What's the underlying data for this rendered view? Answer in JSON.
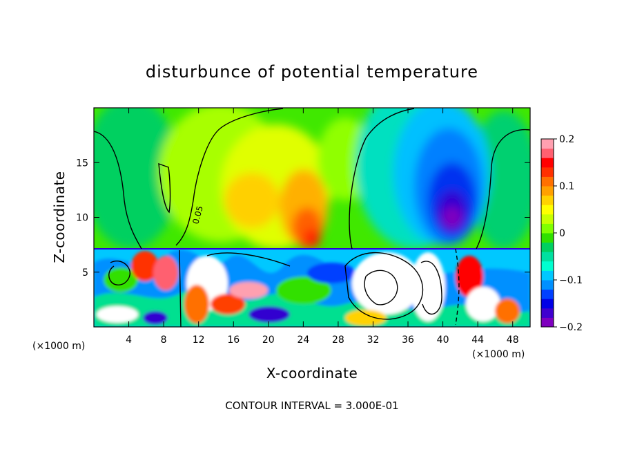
{
  "chart_data": {
    "type": "heatmap",
    "title": "disturbunce of potential temperature",
    "xlabel": "X-coordinate",
    "ylabel": "Z-coordinate",
    "x_unit": "(×1000 m)",
    "x_unit_right": "(×1000 m)",
    "xlim": [
      0,
      50
    ],
    "ylim": [
      0,
      20
    ],
    "x_ticks": [
      "4",
      "8",
      "12",
      "16",
      "20",
      "24",
      "28",
      "32",
      "36",
      "40",
      "44",
      "48"
    ],
    "y_ticks": [
      "5",
      "10",
      "15"
    ],
    "colorbar": {
      "range": [
        -0.2,
        0.2
      ],
      "tick_labels": [
        "0.2",
        "0.1",
        "0",
        "−0.1",
        "−0.2"
      ],
      "colors": [
        "#7f00bf",
        "#3f00cf",
        "#0000e6",
        "#0040ff",
        "#0090ff",
        "#00c8ff",
        "#00ffd0",
        "#00e0a0",
        "#00d060",
        "#30e000",
        "#80ff00",
        "#c8ff00",
        "#ffff00",
        "#ffd200",
        "#ffa000",
        "#ff7000",
        "#ff3000",
        "#ff0000",
        "#ff6070",
        "#ffa0b0"
      ]
    },
    "contour_labels": [
      "0.05"
    ],
    "note": "CONTOUR INTERVAL = 3.000E-01"
  },
  "text": {
    "title": "disturbunce of potential temperature",
    "xlabel": "X-coordinate",
    "ylabel": "Z-coordinate",
    "x_unit_left": "(×1000 m)",
    "x_unit_right": "(×1000 m)",
    "contour_interval": "CONTOUR INTERVAL = 3.000E-01",
    "contour_label": "0.05"
  },
  "colors": {
    "background": "#ffffff",
    "axis": "#000000"
  }
}
